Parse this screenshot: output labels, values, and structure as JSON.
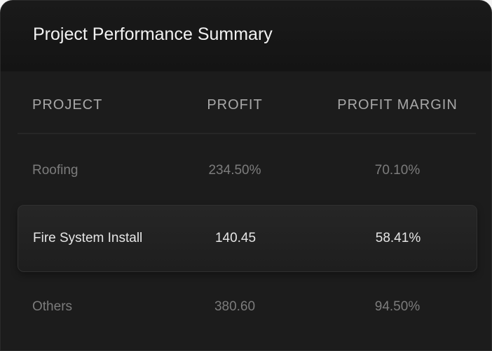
{
  "title": "Project Performance Summary",
  "columns": [
    "PROJECT",
    "PROFIT",
    "PROFIT MARGIN"
  ],
  "rows": [
    {
      "project": "Roofing",
      "profit": "234.50%",
      "margin": "70.10%"
    },
    {
      "project": "Fire System Install",
      "profit": "140.45",
      "margin": "58.41%",
      "highlighted": true
    },
    {
      "project": "Others",
      "profit": "380.60",
      "margin": "94.50%"
    }
  ]
}
